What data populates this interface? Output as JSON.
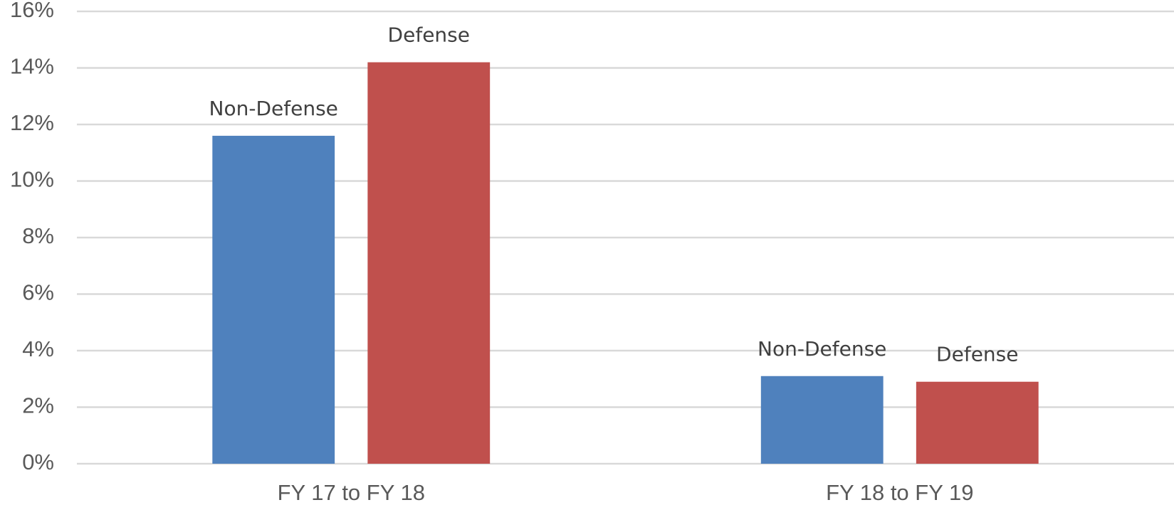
{
  "chart_data": {
    "type": "bar",
    "categories": [
      "FY 17 to FY 18",
      "FY 18 to FY 19"
    ],
    "series": [
      {
        "name": "Non-Defense",
        "color": "#4f81bd",
        "values": [
          11.6,
          3.1
        ]
      },
      {
        "name": "Defense",
        "color": "#c0504d",
        "values": [
          14.2,
          2.9
        ]
      }
    ],
    "ylim": [
      0,
      16
    ],
    "yticks": [
      {
        "value": 0,
        "label": "0%"
      },
      {
        "value": 2,
        "label": "2%"
      },
      {
        "value": 4,
        "label": "4%"
      },
      {
        "value": 6,
        "label": "6%"
      },
      {
        "value": 8,
        "label": "8%"
      },
      {
        "value": 10,
        "label": "10%"
      },
      {
        "value": 12,
        "label": "12%"
      },
      {
        "value": 14,
        "label": "14%"
      },
      {
        "value": 16,
        "label": "16%"
      }
    ],
    "grid": true
  }
}
